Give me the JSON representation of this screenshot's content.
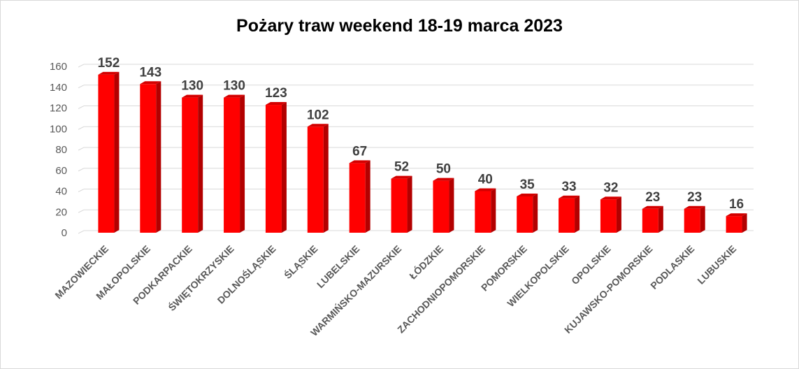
{
  "chart_data": {
    "type": "bar",
    "title": "Pożary traw weekend 18-19 marca 2023",
    "xlabel": "",
    "ylabel": "",
    "ylim": [
      0,
      160
    ],
    "yticks": [
      "0",
      "20",
      "40",
      "60",
      "80",
      "100",
      "120",
      "140",
      "160"
    ],
    "grid": true,
    "legend": "none",
    "bar_color": "#ff0000",
    "categories": [
      "MAZOWIECKIE",
      "MAŁOPOLSKIE",
      "PODKARPACKIE",
      "ŚWIĘTOKRZYSKIE",
      "DOLNOŚLĄSKIE",
      "ŚLĄSKIE",
      "LUBELSKIE",
      "WARMIŃSKO-MAZURSKIE",
      "ŁÓDZKIE",
      "ZACHODNIOPOMORSKIE",
      "POMORSKIE",
      "WIELKOPOLSKIE",
      "OPOLSKIE",
      "KUJAWSKO-POMORSKIE",
      "PODLASKIE",
      "LUBUSKIE"
    ],
    "values": [
      152,
      143,
      130,
      130,
      123,
      102,
      67,
      52,
      50,
      40,
      35,
      33,
      32,
      23,
      23,
      16
    ]
  }
}
